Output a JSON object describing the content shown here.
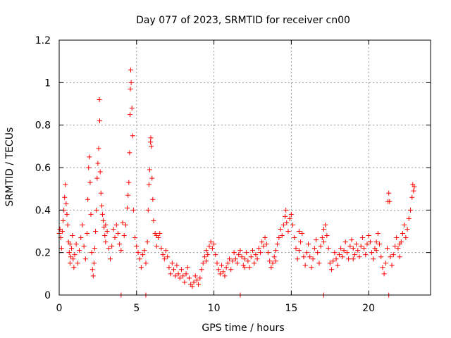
{
  "chart_data": {
    "type": "scatter",
    "title": "Day 077 of 2023, SRMTID for receiver cn00",
    "xlabel": "GPS time / hours",
    "ylabel": "SRMTID / TECUs",
    "xlim": [
      0,
      24.0
    ],
    "ylim": [
      0,
      1.2
    ],
    "x_ticks": [
      0,
      5,
      10,
      15,
      20
    ],
    "y_ticks": [
      0,
      0.2,
      0.4,
      0.6,
      0.8,
      1.0,
      1.2
    ],
    "x_tick_labels": [
      "0",
      "5",
      "10",
      "15",
      "20"
    ],
    "y_tick_labels": [
      "0",
      "0.2",
      "0.4",
      "0.6",
      "0.8",
      "1",
      "1.2"
    ],
    "grid": true,
    "marker": "+",
    "color": "#ff0000",
    "series": [
      {
        "name": "SRMTID",
        "points": [
          [
            0.0,
            0.29
          ],
          [
            0.05,
            0.31
          ],
          [
            0.1,
            0.27
          ],
          [
            0.15,
            0.22
          ],
          [
            0.2,
            0.3
          ],
          [
            0.25,
            0.35
          ],
          [
            0.3,
            0.4
          ],
          [
            0.35,
            0.46
          ],
          [
            0.4,
            0.52
          ],
          [
            0.45,
            0.43
          ],
          [
            0.5,
            0.38
          ],
          [
            0.55,
            0.33
          ],
          [
            0.6,
            0.25
          ],
          [
            0.65,
            0.2
          ],
          [
            0.7,
            0.15
          ],
          [
            0.75,
            0.18
          ],
          [
            0.8,
            0.22
          ],
          [
            0.85,
            0.28
          ],
          [
            0.9,
            0.17
          ],
          [
            0.95,
            0.13
          ],
          [
            1.0,
            0.19
          ],
          [
            1.1,
            0.24
          ],
          [
            1.2,
            0.15
          ],
          [
            1.3,
            0.21
          ],
          [
            1.4,
            0.27
          ],
          [
            1.5,
            0.33
          ],
          [
            1.6,
            0.23
          ],
          [
            1.7,
            0.17
          ],
          [
            1.8,
            0.29
          ],
          [
            1.85,
            0.45
          ],
          [
            1.9,
            0.6
          ],
          [
            1.95,
            0.65
          ],
          [
            2.0,
            0.53
          ],
          [
            2.05,
            0.38
          ],
          [
            2.1,
            0.2
          ],
          [
            2.15,
            0.12
          ],
          [
            2.2,
            0.09
          ],
          [
            2.25,
            0.15
          ],
          [
            2.3,
            0.22
          ],
          [
            2.35,
            0.3
          ],
          [
            2.4,
            0.4
          ],
          [
            2.45,
            0.55
          ],
          [
            2.5,
            0.62
          ],
          [
            2.55,
            0.69
          ],
          [
            2.6,
            0.92
          ],
          [
            2.62,
            0.82
          ],
          [
            2.65,
            0.58
          ],
          [
            2.7,
            0.48
          ],
          [
            2.75,
            0.42
          ],
          [
            2.8,
            0.38
          ],
          [
            2.85,
            0.35
          ],
          [
            2.9,
            0.32
          ],
          [
            2.95,
            0.28
          ],
          [
            3.0,
            0.25
          ],
          [
            3.1,
            0.3
          ],
          [
            3.2,
            0.22
          ],
          [
            3.3,
            0.17
          ],
          [
            3.4,
            0.23
          ],
          [
            3.5,
            0.31
          ],
          [
            3.6,
            0.27
          ],
          [
            3.7,
            0.33
          ],
          [
            3.8,
            0.29
          ],
          [
            3.9,
            0.24
          ],
          [
            4.0,
            0.21
          ],
          [
            4.1,
            0.34
          ],
          [
            4.2,
            0.28
          ],
          [
            4.3,
            0.33
          ],
          [
            4.4,
            0.41
          ],
          [
            4.45,
            0.47
          ],
          [
            4.5,
            0.53
          ],
          [
            4.55,
            0.67
          ],
          [
            4.58,
            0.85
          ],
          [
            4.6,
            0.97
          ],
          [
            4.62,
            1.06
          ],
          [
            4.65,
            1.0
          ],
          [
            4.7,
            0.88
          ],
          [
            4.75,
            0.75
          ],
          [
            4.8,
            0.4
          ],
          [
            4.9,
            0.27
          ],
          [
            5.0,
            0.23
          ],
          [
            5.1,
            0.2
          ],
          [
            5.2,
            0.17
          ],
          [
            5.3,
            0.13
          ],
          [
            5.4,
            0.19
          ],
          [
            5.5,
            0.21
          ],
          [
            5.6,
            0.15
          ],
          [
            5.7,
            0.25
          ],
          [
            5.75,
            0.4
          ],
          [
            5.8,
            0.52
          ],
          [
            5.85,
            0.59
          ],
          [
            5.9,
            0.72
          ],
          [
            5.92,
            0.74
          ],
          [
            5.95,
            0.7
          ],
          [
            6.0,
            0.55
          ],
          [
            6.05,
            0.45
          ],
          [
            6.1,
            0.35
          ],
          [
            6.2,
            0.29
          ],
          [
            6.3,
            0.23
          ],
          [
            6.4,
            0.27
          ],
          [
            6.5,
            0.29
          ],
          [
            6.6,
            0.22
          ],
          [
            6.7,
            0.19
          ],
          [
            6.8,
            0.17
          ],
          [
            6.9,
            0.21
          ],
          [
            7.0,
            0.18
          ],
          [
            7.1,
            0.13
          ],
          [
            7.2,
            0.1
          ],
          [
            7.3,
            0.15
          ],
          [
            7.4,
            0.12
          ],
          [
            7.5,
            0.09
          ],
          [
            7.6,
            0.14
          ],
          [
            7.7,
            0.1
          ],
          [
            7.8,
            0.08
          ],
          [
            7.9,
            0.12
          ],
          [
            8.0,
            0.09
          ],
          [
            8.1,
            0.06
          ],
          [
            8.2,
            0.1
          ],
          [
            8.3,
            0.13
          ],
          [
            8.4,
            0.08
          ],
          [
            8.5,
            0.05
          ],
          [
            8.6,
            0.04
          ],
          [
            8.7,
            0.06
          ],
          [
            8.8,
            0.09
          ],
          [
            8.9,
            0.07
          ],
          [
            9.0,
            0.05
          ],
          [
            9.1,
            0.08
          ],
          [
            9.2,
            0.12
          ],
          [
            9.3,
            0.15
          ],
          [
            9.4,
            0.18
          ],
          [
            9.5,
            0.21
          ],
          [
            9.6,
            0.19
          ],
          [
            9.7,
            0.23
          ],
          [
            9.8,
            0.25
          ],
          [
            9.9,
            0.22
          ],
          [
            10.0,
            0.24
          ],
          [
            10.1,
            0.19
          ],
          [
            10.2,
            0.15
          ],
          [
            10.3,
            0.12
          ],
          [
            10.4,
            0.1
          ],
          [
            10.5,
            0.14
          ],
          [
            10.6,
            0.11
          ],
          [
            10.7,
            0.09
          ],
          [
            10.8,
            0.13
          ],
          [
            10.9,
            0.15
          ],
          [
            11.0,
            0.17
          ],
          [
            11.1,
            0.12
          ],
          [
            11.2,
            0.16
          ],
          [
            11.3,
            0.2
          ],
          [
            11.4,
            0.17
          ],
          [
            11.5,
            0.15
          ],
          [
            11.6,
            0.19
          ],
          [
            11.7,
            0.21
          ],
          [
            11.8,
            0.18
          ],
          [
            11.9,
            0.14
          ],
          [
            12.0,
            0.17
          ],
          [
            12.1,
            0.2
          ],
          [
            12.2,
            0.16
          ],
          [
            12.3,
            0.13
          ],
          [
            12.4,
            0.18
          ],
          [
            12.5,
            0.21
          ],
          [
            12.6,
            0.15
          ],
          [
            12.7,
            0.19
          ],
          [
            12.8,
            0.17
          ],
          [
            12.9,
            0.22
          ],
          [
            13.0,
            0.2
          ],
          [
            13.1,
            0.25
          ],
          [
            13.2,
            0.23
          ],
          [
            13.3,
            0.27
          ],
          [
            13.4,
            0.24
          ],
          [
            13.5,
            0.2
          ],
          [
            13.6,
            0.16
          ],
          [
            13.7,
            0.13
          ],
          [
            13.8,
            0.15
          ],
          [
            13.9,
            0.18
          ],
          [
            14.0,
            0.21
          ],
          [
            14.1,
            0.24
          ],
          [
            14.2,
            0.27
          ],
          [
            14.3,
            0.31
          ],
          [
            14.4,
            0.28
          ],
          [
            14.5,
            0.33
          ],
          [
            14.6,
            0.37
          ],
          [
            14.65,
            0.4
          ],
          [
            14.7,
            0.34
          ],
          [
            14.8,
            0.3
          ],
          [
            14.9,
            0.36
          ],
          [
            15.0,
            0.38
          ],
          [
            15.1,
            0.33
          ],
          [
            15.2,
            0.27
          ],
          [
            15.3,
            0.22
          ],
          [
            15.4,
            0.17
          ],
          [
            15.5,
            0.21
          ],
          [
            15.6,
            0.25
          ],
          [
            15.7,
            0.29
          ],
          [
            15.8,
            0.18
          ],
          [
            15.9,
            0.14
          ],
          [
            16.0,
            0.2
          ],
          [
            16.1,
            0.24
          ],
          [
            16.2,
            0.18
          ],
          [
            16.3,
            0.13
          ],
          [
            16.4,
            0.17
          ],
          [
            16.5,
            0.22
          ],
          [
            16.6,
            0.26
          ],
          [
            16.7,
            0.2
          ],
          [
            16.8,
            0.15
          ],
          [
            16.9,
            0.23
          ],
          [
            17.0,
            0.27
          ],
          [
            17.1,
            0.31
          ],
          [
            17.2,
            0.33
          ],
          [
            17.3,
            0.28
          ],
          [
            17.4,
            0.22
          ],
          [
            17.5,
            0.15
          ],
          [
            17.6,
            0.12
          ],
          [
            17.7,
            0.16
          ],
          [
            17.8,
            0.2
          ],
          [
            17.9,
            0.17
          ],
          [
            18.0,
            0.14
          ],
          [
            18.1,
            0.19
          ],
          [
            18.2,
            0.22
          ],
          [
            18.3,
            0.18
          ],
          [
            18.4,
            0.21
          ],
          [
            18.5,
            0.25
          ],
          [
            18.6,
            0.2
          ],
          [
            18.7,
            0.17
          ],
          [
            18.8,
            0.23
          ],
          [
            18.9,
            0.26
          ],
          [
            19.0,
            0.22
          ],
          [
            19.1,
            0.19
          ],
          [
            19.2,
            0.24
          ],
          [
            19.3,
            0.21
          ],
          [
            19.4,
            0.18
          ],
          [
            19.5,
            0.23
          ],
          [
            19.6,
            0.27
          ],
          [
            19.7,
            0.22
          ],
          [
            19.8,
            0.19
          ],
          [
            19.9,
            0.24
          ],
          [
            20.0,
            0.28
          ],
          [
            20.1,
            0.25
          ],
          [
            20.2,
            0.2
          ],
          [
            20.3,
            0.17
          ],
          [
            20.4,
            0.22
          ],
          [
            20.5,
            0.25
          ],
          [
            20.6,
            0.29
          ],
          [
            20.7,
            0.24
          ],
          [
            20.8,
            0.18
          ],
          [
            20.9,
            0.13
          ],
          [
            21.0,
            0.1
          ],
          [
            21.1,
            0.15
          ],
          [
            21.2,
            0.22
          ],
          [
            21.25,
            0.44
          ],
          [
            21.3,
            0.48
          ],
          [
            21.35,
            0.44
          ],
          [
            21.4,
            0.18
          ],
          [
            21.5,
            0.14
          ],
          [
            21.6,
            0.19
          ],
          [
            21.7,
            0.23
          ],
          [
            21.8,
            0.27
          ],
          [
            21.9,
            0.22
          ],
          [
            22.0,
            0.18
          ],
          [
            22.1,
            0.25
          ],
          [
            22.2,
            0.29
          ],
          [
            22.3,
            0.33
          ],
          [
            22.4,
            0.27
          ],
          [
            22.5,
            0.31
          ],
          [
            22.6,
            0.36
          ],
          [
            22.7,
            0.4
          ],
          [
            22.8,
            0.46
          ],
          [
            22.85,
            0.52
          ],
          [
            22.9,
            0.49
          ],
          [
            22.95,
            0.51
          ],
          [
            0.7,
            0.24
          ],
          [
            3.0,
            0.33
          ],
          [
            6.3,
            0.28
          ],
          [
            9.5,
            0.16
          ],
          [
            12.0,
            0.13
          ],
          [
            15.5,
            0.3
          ],
          [
            17.1,
            0.25
          ],
          [
            19.0,
            0.17
          ],
          [
            20.5,
            0.21
          ],
          [
            22.0,
            0.24
          ],
          [
            14.0,
            0.16
          ]
        ]
      }
    ],
    "baseline_points": [
      [
        4.0,
        0
      ],
      [
        5.6,
        0
      ],
      [
        11.7,
        0
      ],
      [
        17.1,
        0
      ],
      [
        21.3,
        0
      ]
    ]
  }
}
